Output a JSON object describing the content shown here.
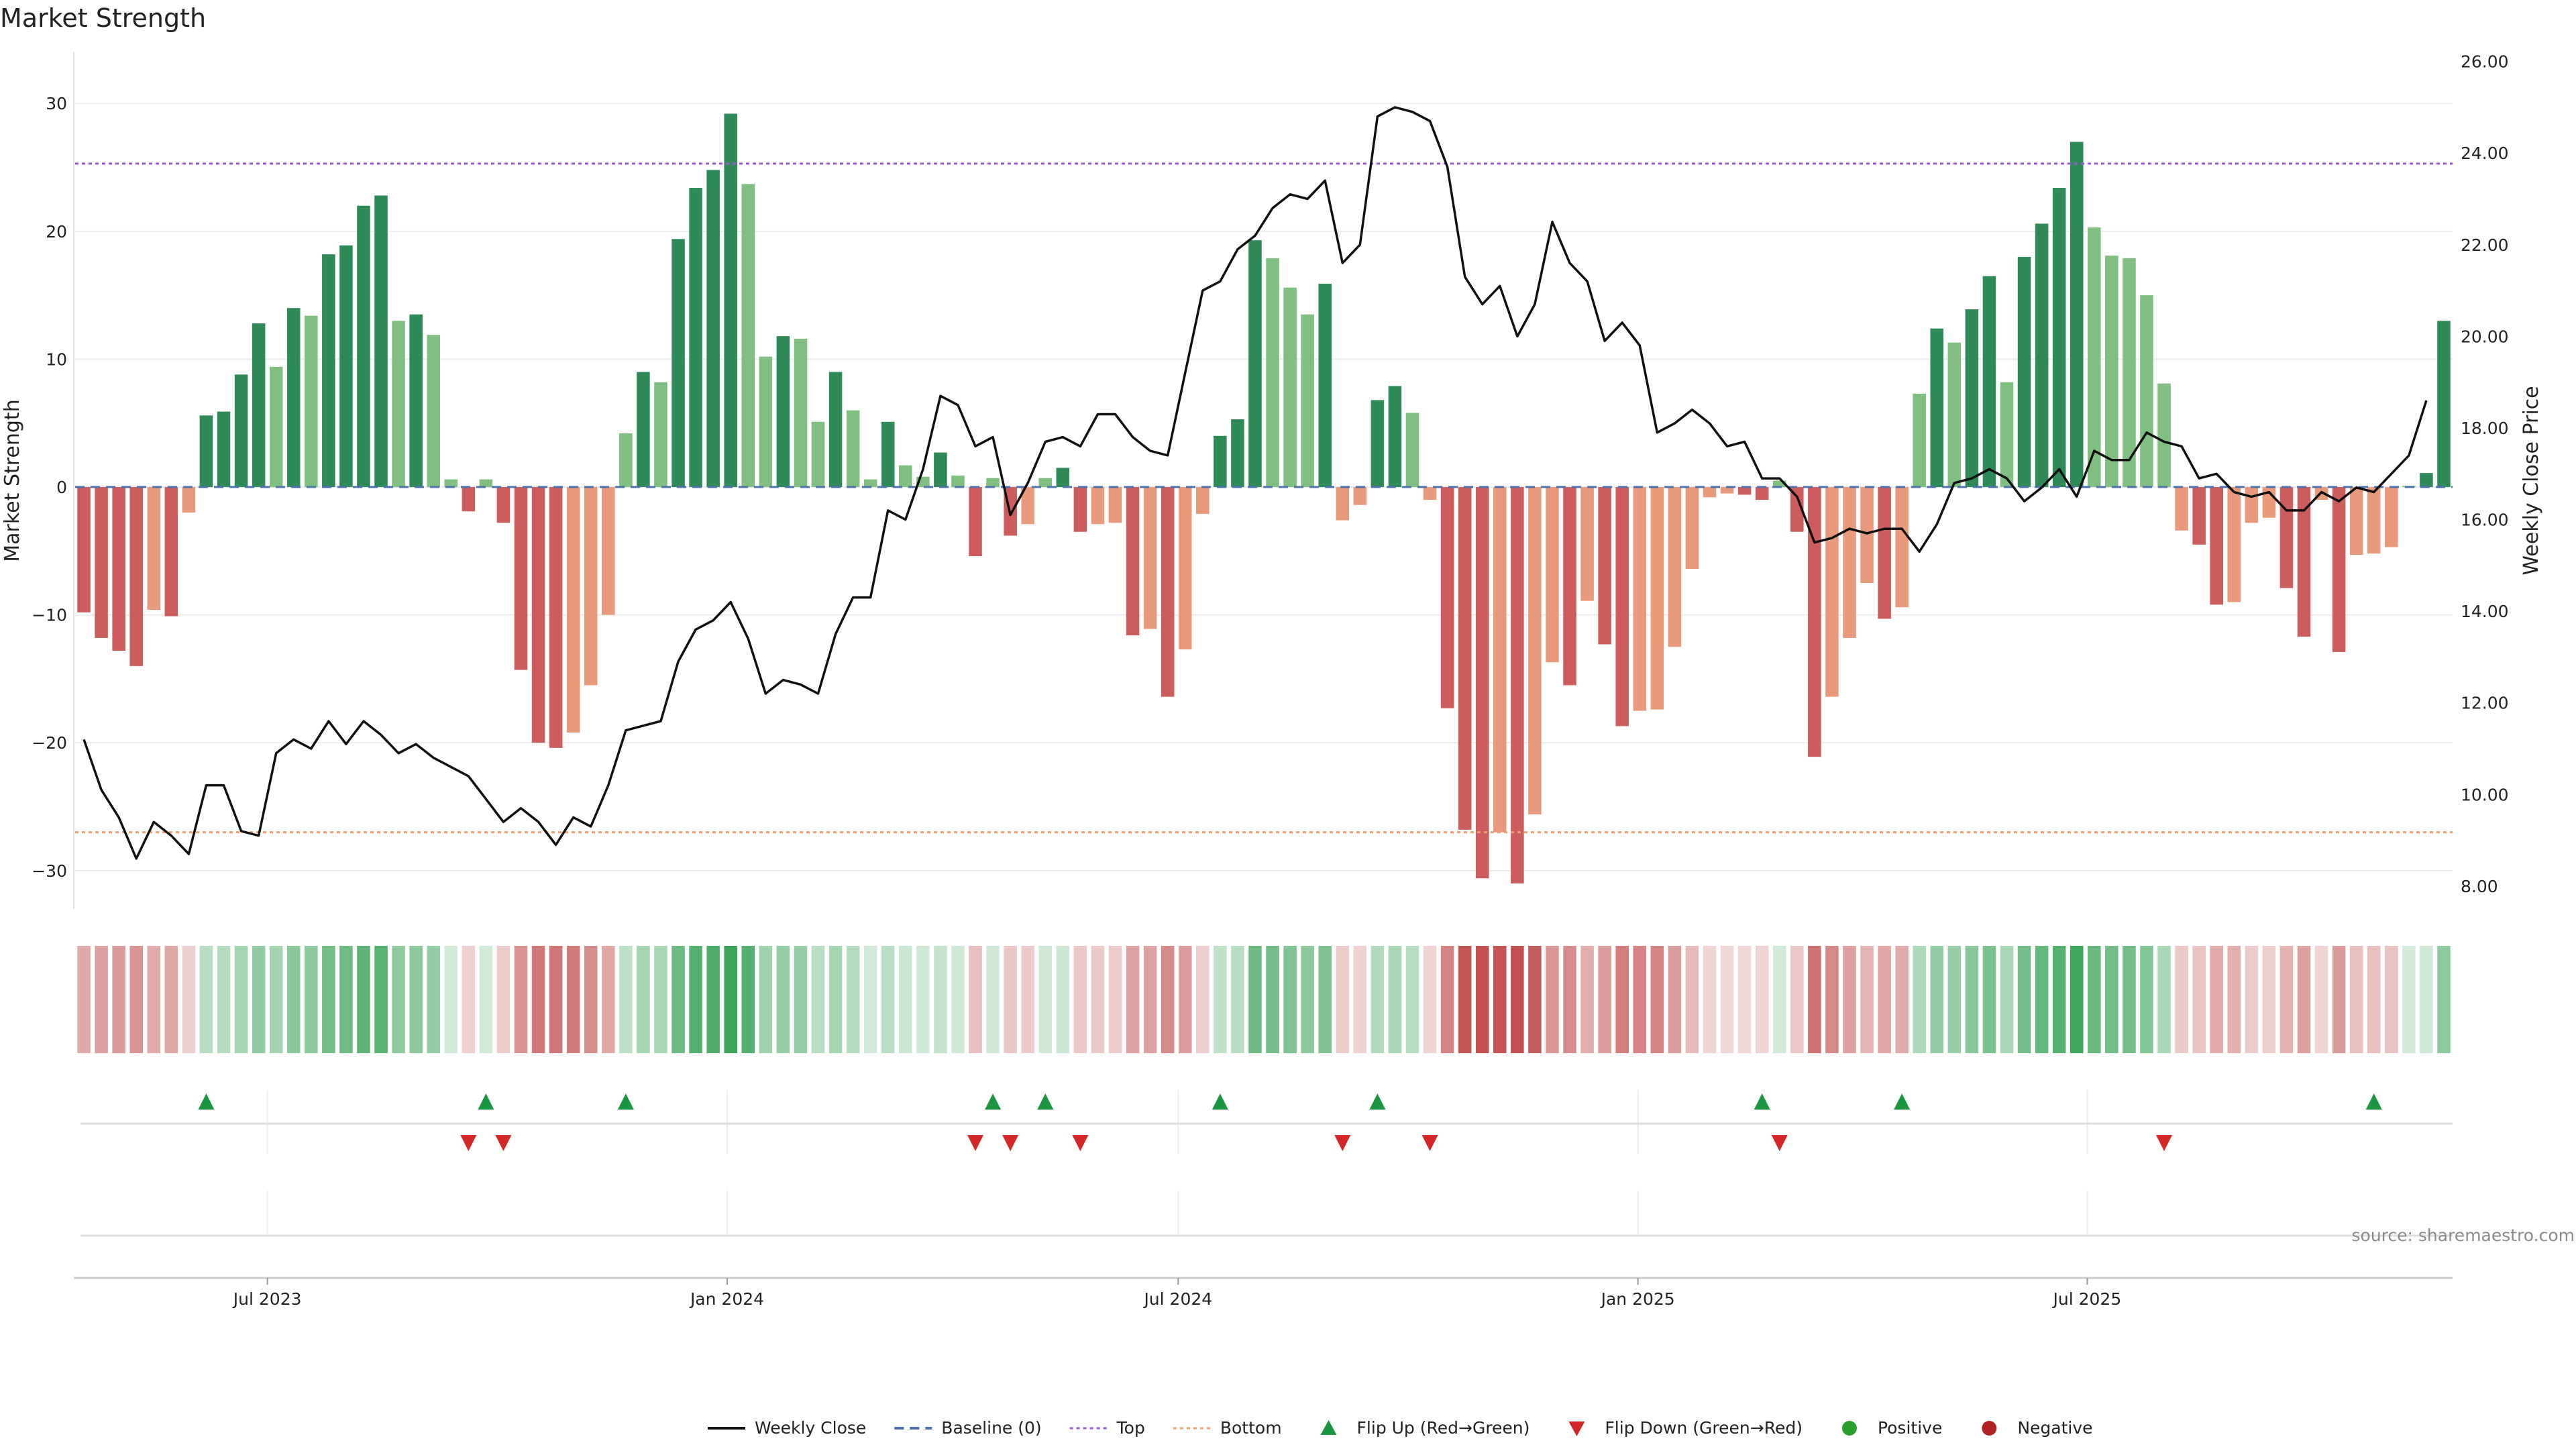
{
  "chart_data": {
    "type": "bar",
    "title": "Market Strength",
    "ylabel": "Market Strength",
    "y2label": "Weekly Close Price",
    "ylim": [
      -33,
      34
    ],
    "y2lim": [
      7.5,
      26.2
    ],
    "yticks": [
      30,
      20,
      10,
      0,
      -10,
      -20,
      -30
    ],
    "ytick_labels": [
      "30",
      "20",
      "10",
      "0",
      "−10",
      "−20",
      "−30"
    ],
    "y2ticks": [
      26,
      24,
      22,
      20,
      18,
      16,
      14,
      12,
      10,
      8
    ],
    "y2tick_labels": [
      "26.00",
      "24.00",
      "22.00",
      "20.00",
      "18.00",
      "16.00",
      "14.00",
      "12.00",
      "10.00",
      "8.00"
    ],
    "top_line": 25.3,
    "bottom_line": -27.0,
    "xticks": [
      {
        "label": "Jul 2023",
        "week": 11
      },
      {
        "label": "Jan 2024",
        "week": 37.3
      },
      {
        "label": "Jul 2024",
        "week": 63.1
      },
      {
        "label": "Jan 2025",
        "week": 89.4
      },
      {
        "label": "Jul 2025",
        "week": 115.1
      }
    ],
    "values": [
      -9.8,
      -11.8,
      -12.8,
      -14.0,
      -9.6,
      -10.1,
      -2.0,
      5.6,
      5.9,
      8.8,
      12.8,
      9.4,
      14.0,
      13.4,
      18.2,
      18.9,
      22.0,
      22.8,
      13.0,
      13.5,
      11.9,
      0.6,
      -1.9,
      0.6,
      -2.8,
      -14.3,
      -20.0,
      -20.4,
      -19.2,
      -15.5,
      -10.0,
      4.2,
      9.0,
      8.2,
      19.4,
      23.4,
      24.8,
      29.2,
      23.7,
      10.2,
      11.8,
      11.6,
      5.1,
      9.0,
      6.0,
      0.6,
      5.1,
      1.7,
      0.8,
      2.7,
      0.9,
      -5.4,
      0.7,
      -3.8,
      -2.9,
      0.7,
      1.5,
      -3.5,
      -2.9,
      -2.8,
      -11.6,
      -11.1,
      -16.4,
      -12.7,
      -2.1,
      4.0,
      5.3,
      19.3,
      17.9,
      15.6,
      13.5,
      15.9,
      -2.6,
      -1.4,
      6.8,
      7.9,
      5.8,
      -1.0,
      -17.3,
      -26.8,
      -30.6,
      -27.0,
      -31.0,
      -25.6,
      -13.7,
      -15.5,
      -8.9,
      -12.3,
      -18.7,
      -17.5,
      -17.4,
      -12.5,
      -6.4,
      -0.8,
      -0.5,
      -0.6,
      -1.0,
      0.5,
      -3.5,
      -21.1,
      -16.4,
      -11.8,
      -7.5,
      -10.3,
      -9.4,
      7.3,
      12.4,
      11.3,
      13.9,
      16.5,
      8.2,
      18.0,
      20.6,
      23.4,
      27.0,
      20.3,
      18.1,
      17.9,
      15.0,
      8.1,
      -3.4,
      -4.5,
      -9.2,
      -9.0,
      -2.8,
      -2.4,
      -7.9,
      -11.7,
      -1.0,
      -12.9,
      -5.3,
      -5.2,
      -4.7,
      0.1,
      1.1,
      13.0
    ],
    "weekly_close": [
      11.2,
      10.1,
      9.5,
      8.6,
      9.4,
      9.1,
      8.7,
      10.2,
      10.2,
      9.2,
      9.1,
      10.9,
      11.2,
      11.0,
      11.6,
      11.1,
      11.6,
      11.3,
      10.9,
      11.1,
      10.8,
      10.6,
      10.4,
      9.9,
      9.4,
      9.7,
      9.4,
      8.9,
      9.5,
      9.3,
      10.2,
      11.4,
      11.5,
      11.6,
      12.9,
      13.6,
      13.8,
      14.2,
      13.4,
      12.2,
      12.5,
      12.4,
      12.2,
      13.5,
      14.3,
      14.3,
      16.2,
      16.0,
      17.1,
      18.7,
      18.5,
      17.6,
      17.8,
      16.1,
      16.8,
      17.7,
      17.8,
      17.6,
      18.3,
      18.3,
      17.8,
      17.5,
      17.4,
      19.2,
      21.0,
      21.2,
      21.9,
      22.2,
      22.8,
      23.1,
      23.0,
      23.4,
      21.6,
      22.0,
      24.8,
      25.0,
      24.9,
      24.7,
      23.7,
      21.3,
      20.7,
      21.1,
      20.0,
      20.7,
      22.5,
      21.6,
      21.2,
      19.9,
      20.3,
      19.8,
      17.9,
      18.1,
      18.4,
      18.1,
      17.6,
      17.7,
      16.9,
      16.9,
      16.5,
      15.5,
      15.6,
      15.8,
      15.7,
      15.8,
      15.8,
      15.3,
      15.9,
      16.8,
      16.9,
      17.1,
      16.9,
      16.4,
      16.7,
      17.1,
      16.5,
      17.5,
      17.3,
      17.3,
      17.9,
      17.7,
      17.6,
      16.9,
      17.0,
      16.6,
      16.5,
      16.6,
      16.2,
      16.2,
      16.6,
      16.4,
      16.7,
      16.6,
      17.0,
      17.4,
      18.6
    ],
    "flip_up": [
      7,
      23,
      31,
      52,
      55,
      65,
      74,
      96,
      104,
      131
    ],
    "flip_down": [
      22,
      24,
      51,
      53,
      57,
      72,
      77,
      97,
      119
    ],
    "legend": [
      {
        "label": "Weekly Close",
        "kind": "line-solid",
        "color": "#111111"
      },
      {
        "label": "Baseline (0)",
        "kind": "line-dash",
        "color": "#4c72b0"
      },
      {
        "label": "Top",
        "kind": "line-dot",
        "color": "#9b59d0"
      },
      {
        "label": "Bottom",
        "kind": "line-dot",
        "color": "#f0a070"
      },
      {
        "label": "Flip Up (Red→Green)",
        "kind": "triangle-up",
        "color": "#1a9641"
      },
      {
        "label": "Flip Down (Green→Red)",
        "kind": "triangle-down",
        "color": "#d62728"
      },
      {
        "label": "Positive",
        "kind": "dot",
        "color": "#2ca02c"
      },
      {
        "label": "Negative",
        "kind": "dot",
        "color": "#b22222"
      }
    ],
    "legend_position": "bottom-center",
    "grid": true,
    "colors": {
      "pos_strong": "#2e8b57",
      "pos_light": "#7fbf7f",
      "neg_strong": "#cd5c5c",
      "neg_light": "#e89a7a",
      "top": "#9b59d0",
      "bottom": "#f0a070",
      "baseline": "#4c72b0"
    }
  },
  "source": "source: sharemaestro.com"
}
